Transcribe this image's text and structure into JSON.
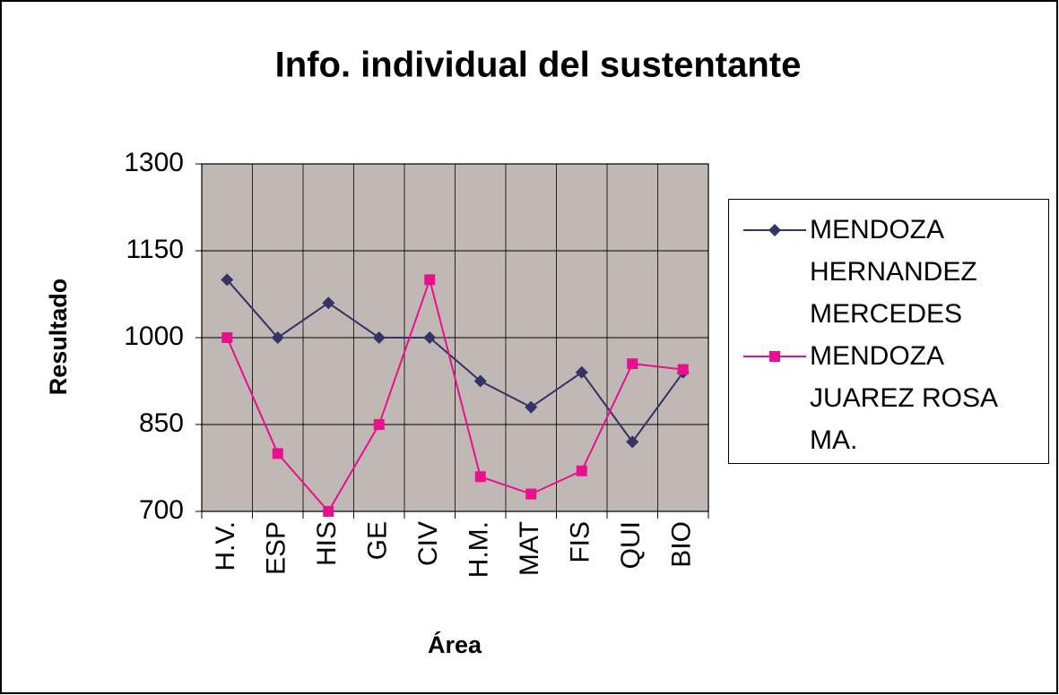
{
  "chart_data": {
    "type": "line",
    "title": "Info. individual del sustentante",
    "x_label": "Área",
    "y_label": "Resultado",
    "categories": [
      "H.V.",
      "ESP",
      "HIS",
      "GE",
      "CIV",
      "H.M.",
      "MAT",
      "FIS",
      "QUI",
      "BIO"
    ],
    "series": [
      {
        "name": "MENDOZA HERNANDEZ MERCEDES",
        "color": "#333366",
        "marker": "diamond",
        "values": [
          1100,
          1000,
          1060,
          1000,
          1000,
          925,
          880,
          940,
          820,
          940
        ]
      },
      {
        "name": "MENDOZA JUAREZ ROSA MA.",
        "color": "#e8108c",
        "marker": "square",
        "values": [
          1000,
          800,
          700,
          850,
          1100,
          760,
          730,
          770,
          955,
          945
        ]
      }
    ],
    "ylim": [
      700,
      1300
    ],
    "yticks": [
      700,
      850,
      1000,
      1150,
      1300
    ],
    "grid": true,
    "legend": "right"
  }
}
